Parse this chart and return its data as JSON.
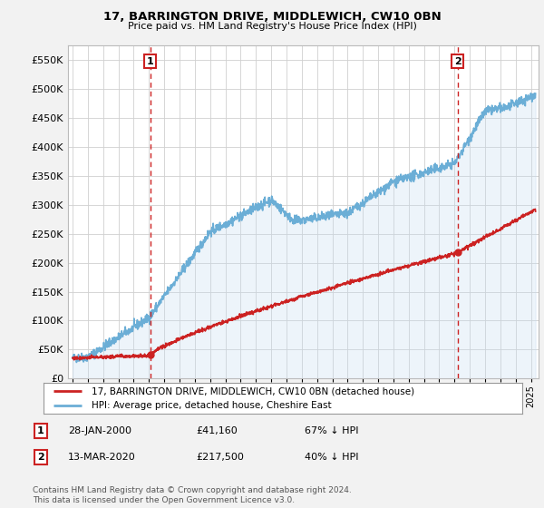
{
  "title": "17, BARRINGTON DRIVE, MIDDLEWICH, CW10 0BN",
  "subtitle": "Price paid vs. HM Land Registry's House Price Index (HPI)",
  "hpi_label": "HPI: Average price, detached house, Cheshire East",
  "property_label": "17, BARRINGTON DRIVE, MIDDLEWICH, CW10 0BN (detached house)",
  "hpi_color": "#6baed6",
  "hpi_fill_color": "#c6dcef",
  "property_color": "#cc2222",
  "background_color": "#f2f2f2",
  "plot_bg_color": "#ffffff",
  "ylim": [
    0,
    575000
  ],
  "yticks": [
    0,
    50000,
    100000,
    150000,
    200000,
    250000,
    300000,
    350000,
    400000,
    450000,
    500000,
    550000
  ],
  "sale1_date": "28-JAN-2000",
  "sale1_price": 41160,
  "sale1_label": "1",
  "sale1_note": "67% ↓ HPI",
  "sale2_date": "13-MAR-2020",
  "sale2_price": 217500,
  "sale2_label": "2",
  "sale2_note": "40% ↓ HPI",
  "footer": "Contains HM Land Registry data © Crown copyright and database right 2024.\nThis data is licensed under the Open Government Licence v3.0.",
  "hpi_x_start": 1995.0,
  "hpi_x_end": 2025.3,
  "sale1_x": 2000.08,
  "sale2_x": 2020.2,
  "xlim_left": 1994.7,
  "xlim_right": 2025.5
}
